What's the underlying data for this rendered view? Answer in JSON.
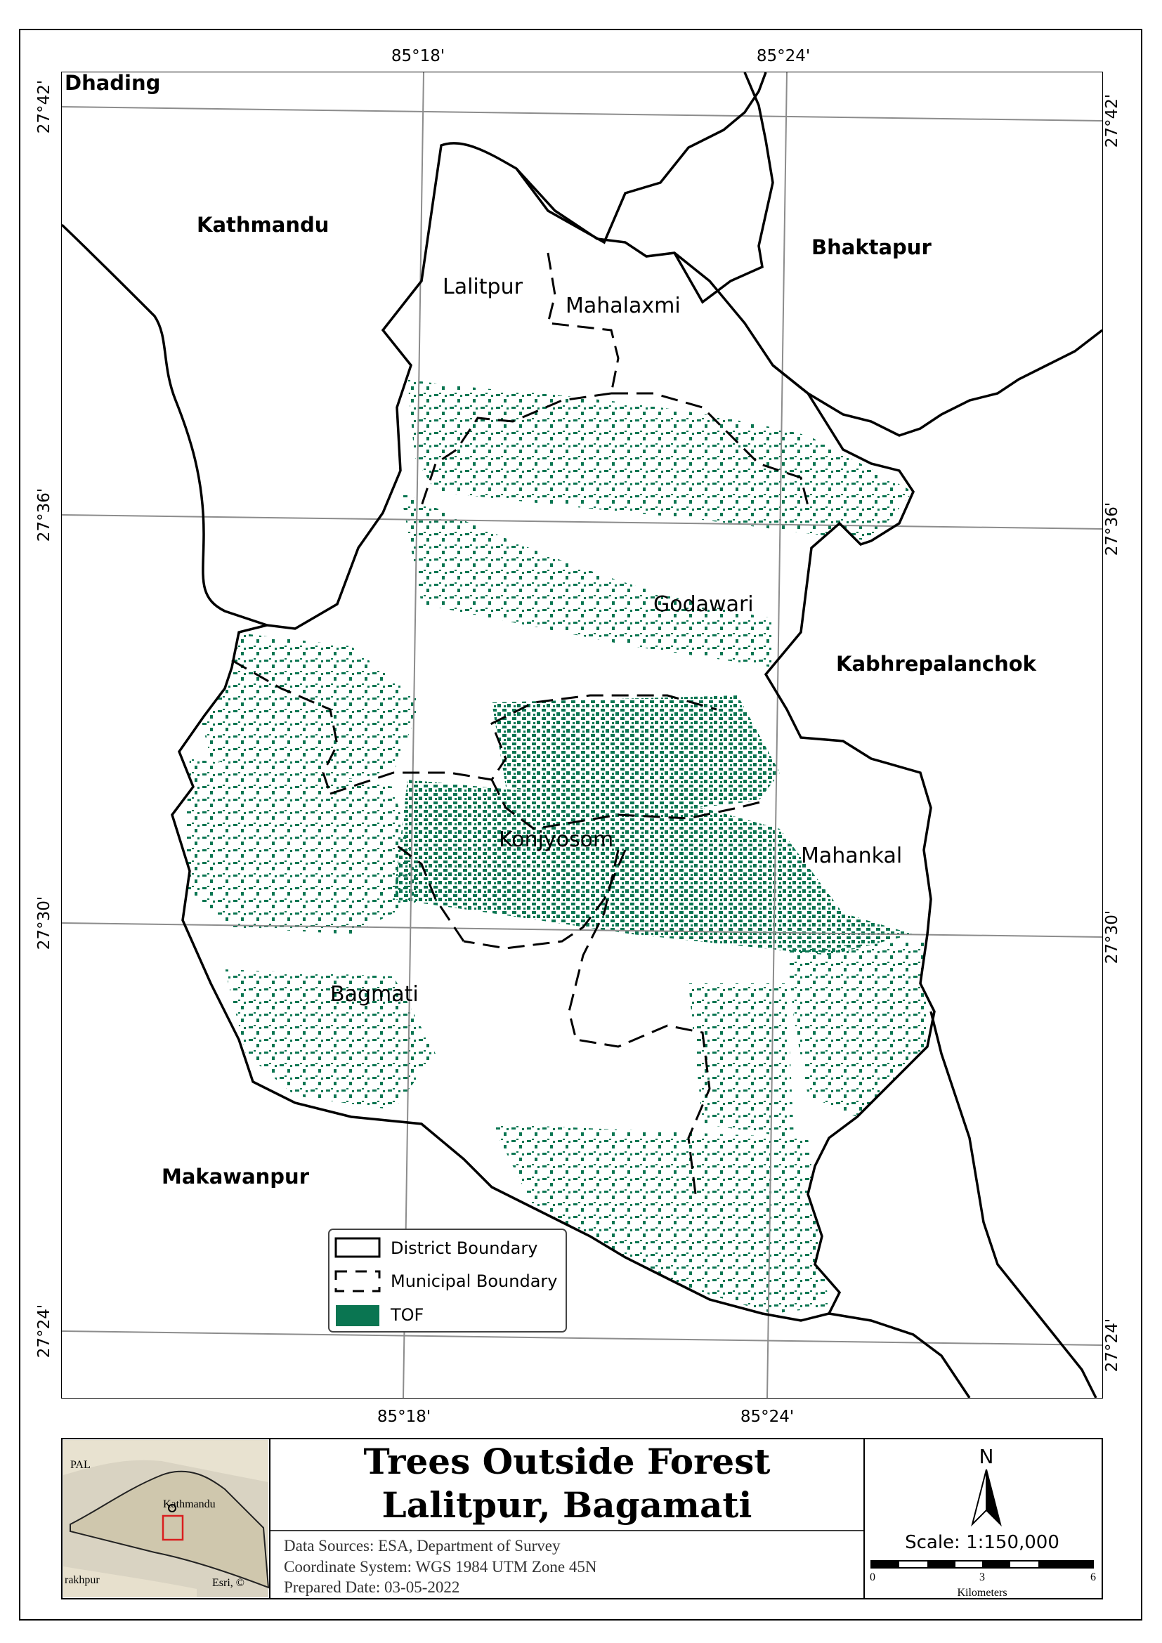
{
  "title": {
    "line1": "Trees Outside Forest",
    "line2": "Lalitpur, Bagamati"
  },
  "metadata": {
    "data_sources": "Data Sources: ESA, Department of Survey",
    "coordinate_system": "Coordinate System: WGS 1984 UTM Zone 45N",
    "prepared_date": "Prepared Date: 03-05-2022"
  },
  "graticule": {
    "top": [
      "85°18'",
      "85°24'"
    ],
    "bottom": [
      "85°18'",
      "85°24'"
    ],
    "left": [
      "27°42'",
      "27°36'",
      "27°30'",
      "27°24'"
    ],
    "right": [
      "27°42'",
      "27°36'",
      "27°30'",
      "27°24'"
    ]
  },
  "districts": {
    "dhading": "Dhading",
    "kathmandu": "Kathmandu",
    "bhaktapur": "Bhaktapur",
    "kabhrepalanchok": "Kabhrepalanchok",
    "makawanpur": "Makawanpur"
  },
  "municipalities": {
    "lalitpur": "Lalitpur",
    "mahalaxmi": "Mahalaxmi",
    "godawari": "Godawari",
    "konjyosom": "Konjyosom",
    "mahankal": "Mahankal",
    "bagmati": "Bagmati"
  },
  "legend": {
    "items": [
      {
        "label": "District Boundary",
        "symbol": "solid-box"
      },
      {
        "label": "Municipal Boundary",
        "symbol": "dashed-box"
      },
      {
        "label": "TOF",
        "symbol": "filled-box",
        "color": "#0a7551"
      }
    ]
  },
  "north_arrow": {
    "label": "N"
  },
  "scale": {
    "text": "Scale: 1:150,000",
    "ticks": [
      "0",
      "3",
      "6"
    ],
    "unit": "Kilometers"
  },
  "locator": {
    "labels": [
      "PAL",
      "Kathmandu",
      "rakhpur",
      "Esri, ©"
    ],
    "highlight_color": "#d91e1e"
  },
  "colors": {
    "tof": "#0a7551",
    "boundary": "#000000",
    "graticule": "#8c8c8c"
  }
}
